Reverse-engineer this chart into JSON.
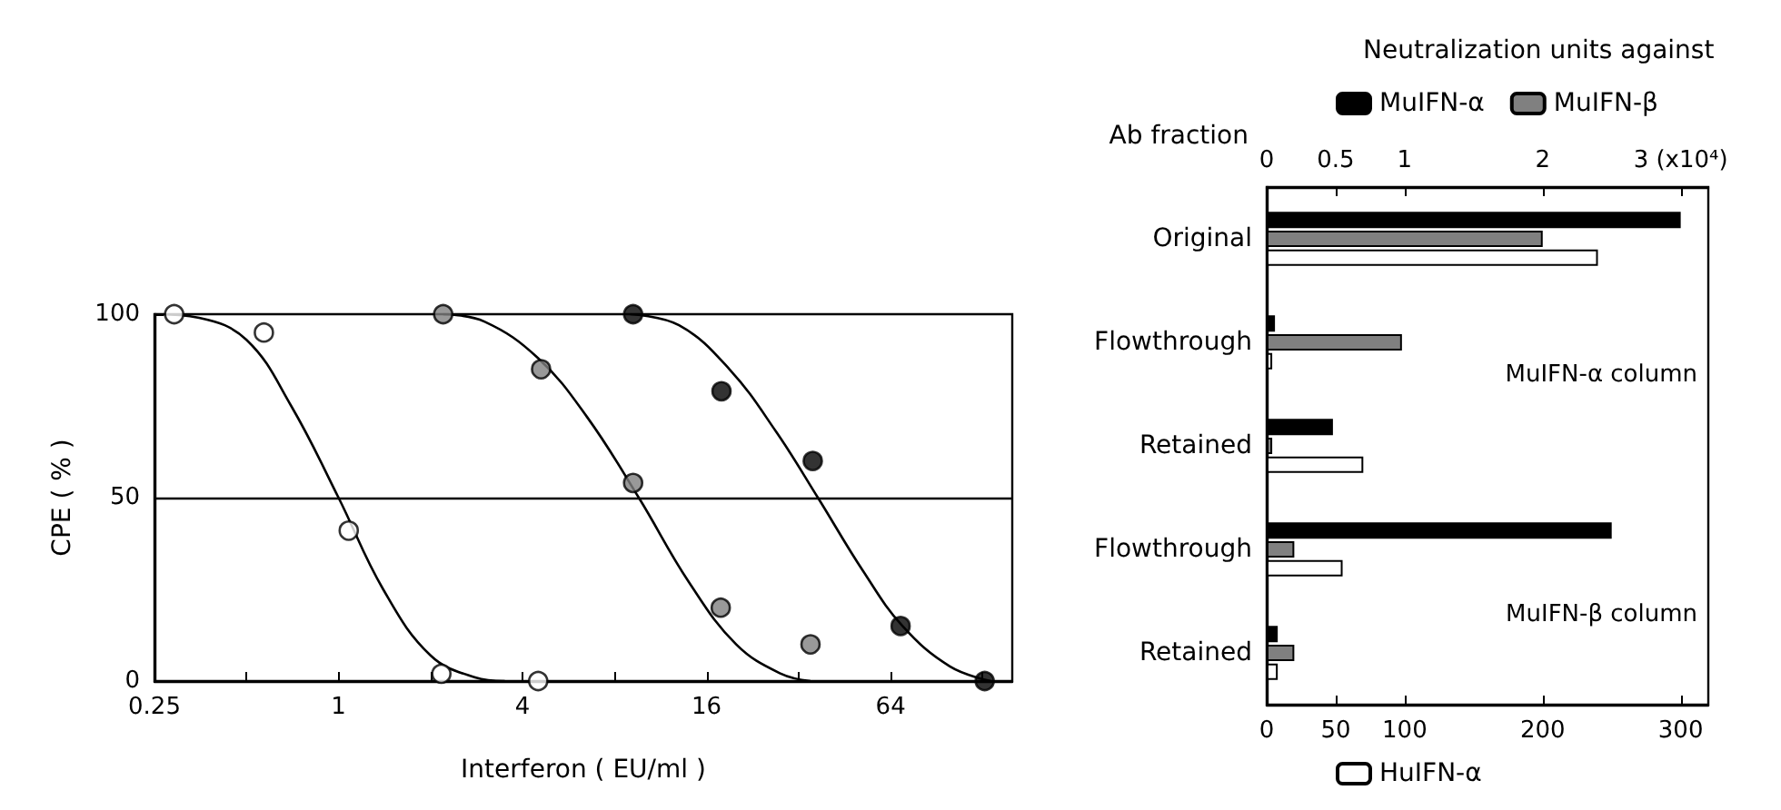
{
  "chart_data": [
    {
      "type": "scatter",
      "xlabel": "Interferon ( EU/ml )",
      "ylabel": "CPE ( % )",
      "log": "x",
      "marker": "circle",
      "xlim": [
        0.25,
        160
      ],
      "xticks": [
        {
          "value": 0.25,
          "label": "0.25"
        },
        {
          "value": 0.5,
          "label": null
        },
        1,
        {
          "value": 2,
          "label": null
        },
        4,
        {
          "value": 8,
          "label": null
        },
        16,
        {
          "value": 32,
          "label": null
        },
        64,
        {
          "value": 128,
          "label": null
        }
      ],
      "ylim": [
        0,
        100
      ],
      "yticks": [
        0,
        50,
        100
      ],
      "ref_lines": [
        {
          "axis": "y",
          "value": 50,
          "color": "#000000"
        }
      ],
      "series": [
        {
          "color": "#ffffff",
          "x": [
            0.29,
            0.57,
            1.08,
            2.17,
            4.5
          ],
          "values": [
            100,
            95,
            41,
            2,
            0
          ]
        },
        {
          "color": "#808080",
          "x": [
            2.2,
            4.6,
            9.2,
            17.8,
            35
          ],
          "values": [
            100,
            85,
            54,
            20,
            10
          ]
        },
        {
          "color": "#000000",
          "x": [
            9.2,
            17.9,
            35.6,
            69,
            130
          ],
          "values": [
            100,
            79,
            60,
            15,
            0
          ]
        },
        {
          "type": "line",
          "marker": "none",
          "color": "#000000",
          "x": [
            0.25,
            0.35,
            0.5,
            0.7,
            1,
            1.4,
            2,
            2.8,
            3.5
          ],
          "values": [
            100,
            99,
            93,
            75,
            50,
            25,
            7,
            1,
            0
          ]
        },
        {
          "type": "line",
          "marker": "none",
          "color": "#000000",
          "x": [
            2.2,
            3,
            4.5,
            6.5,
            9.6,
            14,
            20,
            28,
            35
          ],
          "values": [
            100,
            98,
            88,
            72,
            50,
            27,
            10,
            2,
            0
          ]
        },
        {
          "type": "line",
          "marker": "none",
          "color": "#000000",
          "x": [
            9,
            13,
            19,
            27,
            37,
            52,
            70,
            100,
            136
          ],
          "values": [
            100,
            97,
            85,
            68,
            50,
            30,
            15,
            4,
            0
          ]
        }
      ]
    },
    {
      "type": "bar",
      "orientation": "horizontal",
      "legend_title": "Neutralization units against",
      "ylabel": "Ab fraction",
      "legend": "top",
      "categories": [
        "Original",
        "Flowthrough",
        "Retained",
        "Flowthrough",
        "Retained"
      ],
      "xlim": [
        0,
        320
      ],
      "xticks": [
        0,
        50,
        100,
        200,
        300
      ],
      "x2lim": [
        0,
        3.2
      ],
      "x2ticks": [
        0,
        0.5,
        1,
        2,
        {
          "value": 3,
          "label": "3 (x10⁴)"
        }
      ],
      "annotations": [
        "MuIFN-α column",
        "MuIFN-β column"
      ],
      "series": [
        {
          "name": "MuIFN-α",
          "color": "#000000",
          "axis": "x2",
          "values": [
            3.0,
            0.06,
            0.48,
            2.5,
            0.08
          ]
        },
        {
          "name": "MuIFN-β",
          "color": "#808080",
          "axis": "x2",
          "values": [
            2.0,
            0.98,
            0.04,
            0.2,
            0.2
          ]
        },
        {
          "name": "HuIFN-α",
          "color": "#ffffff",
          "values": [
            240,
            4,
            70,
            55,
            8
          ]
        }
      ]
    }
  ]
}
